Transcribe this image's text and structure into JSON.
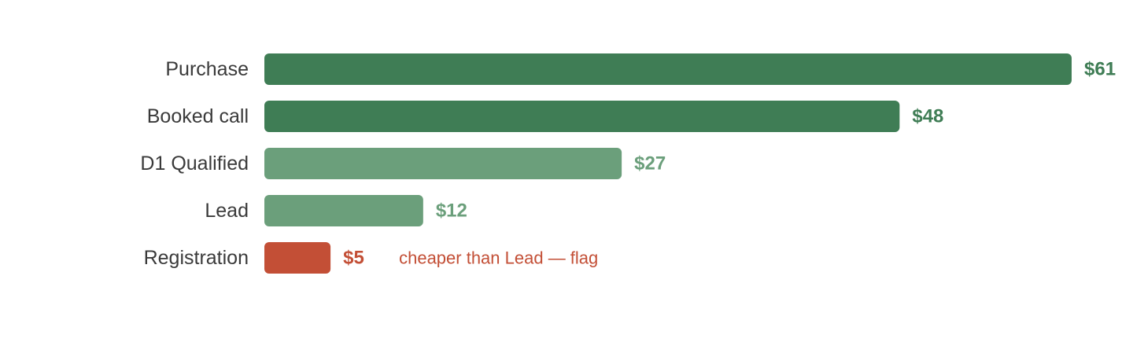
{
  "chart_data": {
    "type": "bar",
    "orientation": "horizontal",
    "categories": [
      "Purchase",
      "Booked call",
      "D1 Qualified",
      "Lead",
      "Registration"
    ],
    "values": [
      61,
      48,
      27,
      12,
      5
    ],
    "value_labels": [
      "$61",
      "$48",
      "$27",
      "$12",
      "$5"
    ],
    "bar_colors": [
      "#3f7d55",
      "#3f7d55",
      "#6b9f7b",
      "#6b9f7b",
      "#c34f36"
    ],
    "xlim": [
      0,
      61
    ],
    "grid": false,
    "legend": "none",
    "annotations": [
      {
        "category": "Registration",
        "text": "cheaper than Lead — flag",
        "color": "#c34f36"
      }
    ]
  },
  "colors": {
    "category_label": "#3a3a3a"
  }
}
